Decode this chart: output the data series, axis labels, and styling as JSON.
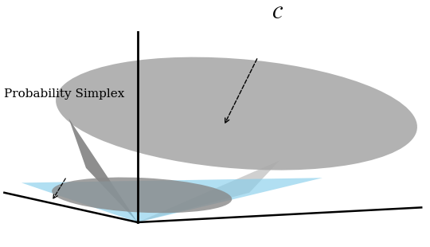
{
  "background_color": "#ffffff",
  "title_label": "$\\mathcal{C}$",
  "title_fontsize": 16,
  "simplex_label": "Probability Simplex",
  "simplex_label_fontsize": 11,
  "cone_color": "#aaaaaa",
  "cone_alpha": 0.9,
  "small_ellipse_color": "#888888",
  "small_ellipse_alpha": 0.8,
  "simplex_color": "#87CEEB",
  "simplex_alpha": 0.65,
  "cone_side_color": "#999999",
  "cone_side_alpha": 0.8
}
